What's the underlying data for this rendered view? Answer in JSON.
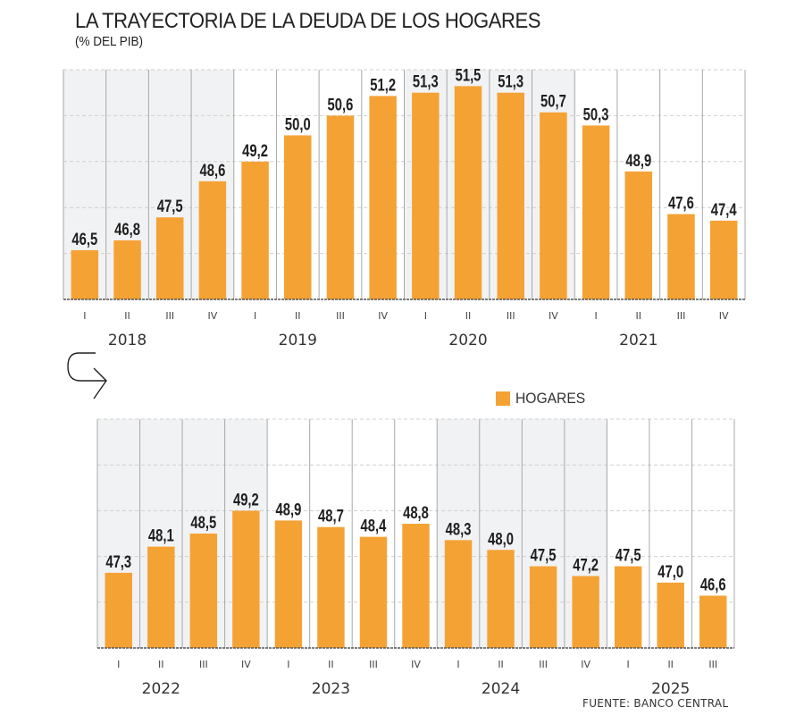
{
  "header": {
    "title": "LA TRAYECTORIA DE LA DEUDA DE LOS HOGARES",
    "subtitle": "(% DEL PIB)"
  },
  "legend": {
    "label": "HOGARES"
  },
  "source": "FUENTE: BANCO CENTRAL",
  "colors": {
    "bar": "#F5A235",
    "shade": "#F1F2F4",
    "grid": "#CFCFCF",
    "divider": "#A8A8A8",
    "axis": "#555555"
  },
  "chart_data": [
    {
      "type": "bar",
      "title": "LA TRAYECTORIA DE LA DEUDA DE LOS HOGARES",
      "ylabel": "% DEL PIB",
      "xlabel": "",
      "ylim": [
        45,
        52
      ],
      "grid": true,
      "years": [
        "2018",
        "2019",
        "2020",
        "2021"
      ],
      "shaded_years": [
        "2018",
        "2020"
      ],
      "categories": [
        "I",
        "II",
        "III",
        "IV",
        "I",
        "II",
        "III",
        "IV",
        "I",
        "II",
        "III",
        "IV",
        "I",
        "II",
        "III",
        "IV"
      ],
      "value_labels": [
        "46,5",
        "46,8",
        "47,5",
        "48,6",
        "49,2",
        "50,0",
        "50,6",
        "51,2",
        "51,3",
        "51,5",
        "51,3",
        "50,7",
        "50,3",
        "48,9",
        "47,6",
        "47,4"
      ],
      "series": [
        {
          "name": "HOGARES",
          "values": [
            46.5,
            46.8,
            47.5,
            48.6,
            49.2,
            50.0,
            50.6,
            51.2,
            51.3,
            51.5,
            51.3,
            50.7,
            50.3,
            48.9,
            47.6,
            47.4
          ]
        }
      ]
    },
    {
      "type": "bar",
      "title": "",
      "ylabel": "% DEL PIB",
      "xlabel": "",
      "ylim": [
        45,
        52
      ],
      "grid": true,
      "years": [
        "2022",
        "2023",
        "2024",
        "2025"
      ],
      "shaded_years": [
        "2022",
        "2024"
      ],
      "categories": [
        "I",
        "II",
        "III",
        "IV",
        "I",
        "II",
        "III",
        "IV",
        "I",
        "II",
        "III",
        "IV",
        "I",
        "II",
        "III"
      ],
      "value_labels": [
        "47,3",
        "48,1",
        "48,5",
        "49,2",
        "48,9",
        "48,7",
        "48,4",
        "48,8",
        "48,3",
        "48,0",
        "47,5",
        "47,2",
        "47,5",
        "47,0",
        "46,6"
      ],
      "series": [
        {
          "name": "HOGARES",
          "values": [
            47.3,
            48.1,
            48.5,
            49.2,
            48.9,
            48.7,
            48.4,
            48.8,
            48.3,
            48.0,
            47.5,
            47.2,
            47.5,
            47.0,
            46.6
          ]
        }
      ]
    }
  ]
}
